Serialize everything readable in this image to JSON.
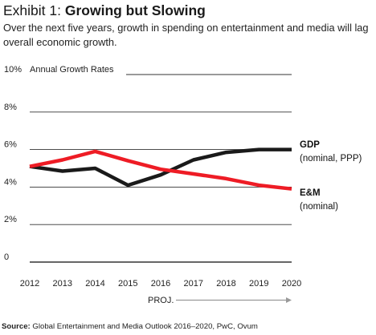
{
  "header": {
    "exhibit": "Exhibit 1:",
    "title": "Growing but Slowing",
    "subtitle": "Over the next five years, growth in spending on entertainment and media will lag overall economic growth."
  },
  "source": {
    "label": "Source:",
    "text": "Global Entertainment and Media Outlook 2016–2020, PwC, Ovum"
  },
  "colors": {
    "gdp": "#1a1a1a",
    "em": "#ee1c25",
    "grid": "#333333",
    "proj": "#999999"
  },
  "chart_data": {
    "type": "line",
    "ylabel": "Annual Growth Rates",
    "x": [
      "2012",
      "2013",
      "2014",
      "2015",
      "2016",
      "2017",
      "2018",
      "2019",
      "2020"
    ],
    "ylim": [
      0,
      10
    ],
    "yticks": [
      {
        "value": 10,
        "label": "10%"
      },
      {
        "value": 8,
        "label": "8%"
      },
      {
        "value": 6,
        "label": "6%"
      },
      {
        "value": 4,
        "label": "4%"
      },
      {
        "value": 2,
        "label": "2%"
      },
      {
        "value": 0,
        "label": "0"
      }
    ],
    "grid": true,
    "projection_label": "PROJ.",
    "projection_start": "2017",
    "series": [
      {
        "name": "GDP",
        "sublabel": "(nominal, PPP)",
        "color": "#1a1a1a",
        "values": [
          5.1,
          4.85,
          5.0,
          4.1,
          4.65,
          5.45,
          5.85,
          6.0,
          6.0
        ]
      },
      {
        "name": "E&M",
        "sublabel": "(nominal)",
        "color": "#ee1c25",
        "values": [
          5.1,
          5.45,
          5.9,
          5.4,
          4.95,
          4.7,
          4.45,
          4.1,
          3.9
        ]
      }
    ]
  }
}
